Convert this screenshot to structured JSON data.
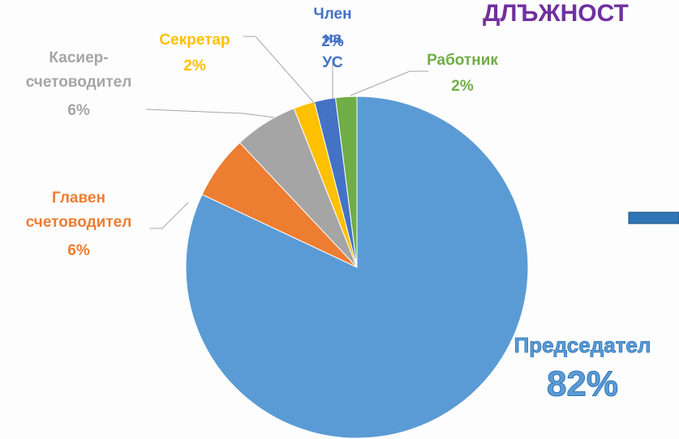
{
  "chart_data": {
    "type": "pie",
    "title": "ДЛЪЖНОСТ",
    "categories": [
      "Председател",
      "Главен счетоводител",
      "Касиер-счетоводител",
      "Секретар",
      "Член на УС",
      "Работник"
    ],
    "values": [
      82,
      6,
      6,
      2,
      2,
      2
    ],
    "value_labels": [
      "82%",
      "6%",
      "6%",
      "2%",
      "2%",
      "2%"
    ],
    "colors": [
      "#5b9bd5",
      "#ed7d31",
      "#a5a5a5",
      "#ffc000",
      "#4472c4",
      "#70ad47"
    ]
  }
}
